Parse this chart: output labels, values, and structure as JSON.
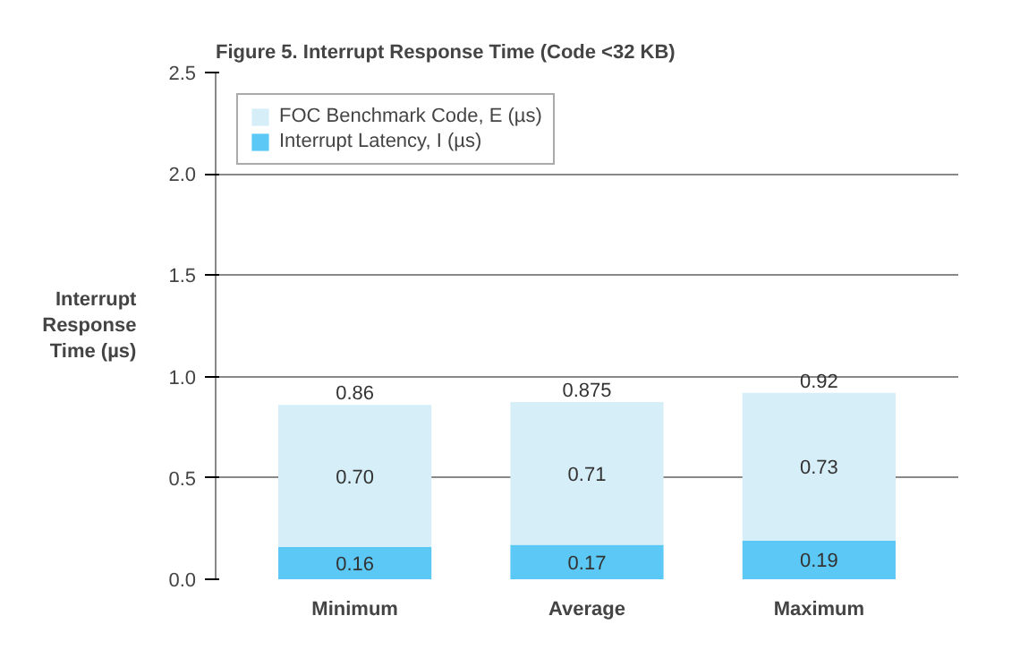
{
  "chart_data": {
    "type": "bar",
    "stacked": true,
    "title": "Figure 5.  Interrupt Response Time (Code <32 KB)",
    "ylabel": "Interrupt Response Time (µs)",
    "categories": [
      "Minimum",
      "Average",
      "Maximum"
    ],
    "series": [
      {
        "name": "Interrupt Latency, I (µs)",
        "color": "#5bc8f5",
        "values": [
          0.16,
          0.17,
          0.19
        ],
        "value_labels": [
          "0.16",
          "0.17",
          "0.19"
        ]
      },
      {
        "name": "FOC Benchmark Code, E (µs)",
        "color": "#d6eef8",
        "values": [
          0.7,
          0.705,
          0.73
        ],
        "value_labels": [
          "0.70",
          "0.71",
          "0.73"
        ]
      }
    ],
    "totals": [
      "0.86",
      "0.875",
      "0.92"
    ],
    "ylim": [
      0,
      2.5
    ],
    "yticks": [
      {
        "value": 0,
        "label": "0.0"
      },
      {
        "value": 0.5,
        "label": "0.5"
      },
      {
        "value": 1,
        "label": "1.0"
      },
      {
        "value": 1.5,
        "label": "1.5"
      },
      {
        "value": 2,
        "label": "2.0"
      },
      {
        "value": 2.5,
        "label": "2.5"
      }
    ],
    "grid": "y",
    "legend": "top left"
  }
}
